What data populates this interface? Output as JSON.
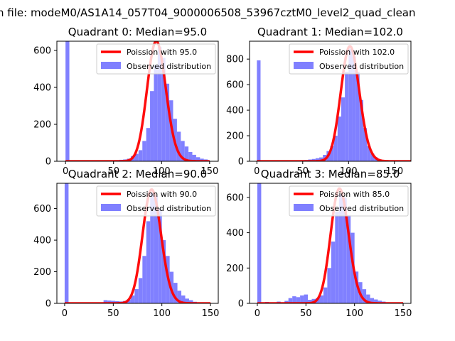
{
  "figure": {
    "suptitle": "n file: modeM0/AS1A14_057T04_9000006508_53967cztM0_level2_quad_clean"
  },
  "colors": {
    "hist_fill": "#8080ff",
    "poisson_line": "#ff0000",
    "axis": "#000000"
  },
  "chart_data": [
    {
      "type": "bar",
      "title": "Quadrant 0: Median=95.0",
      "median": 95.0,
      "xlim": [
        -9,
        159
      ],
      "ylim": [
        0,
        650
      ],
      "xticks": [
        0,
        50,
        100,
        150
      ],
      "yticks": [
        0,
        200,
        400,
        600
      ],
      "bin_width": 4,
      "bins": [
        [
          0,
          650
        ],
        [
          40,
          2
        ],
        [
          48,
          4
        ],
        [
          52,
          6
        ],
        [
          56,
          8
        ],
        [
          60,
          10
        ],
        [
          64,
          14
        ],
        [
          68,
          28
        ],
        [
          72,
          40
        ],
        [
          76,
          60
        ],
        [
          80,
          110
        ],
        [
          84,
          180
        ],
        [
          88,
          380
        ],
        [
          92,
          520
        ],
        [
          96,
          620
        ],
        [
          100,
          560
        ],
        [
          104,
          420
        ],
        [
          108,
          330
        ],
        [
          112,
          230
        ],
        [
          116,
          160
        ],
        [
          120,
          110
        ],
        [
          124,
          80
        ],
        [
          128,
          50
        ],
        [
          132,
          35
        ],
        [
          136,
          22
        ],
        [
          140,
          14
        ],
        [
          144,
          10
        ]
      ],
      "legend": {
        "position": "top-right",
        "line_label": "Poission with 95.0",
        "bar_label": "Observed distribution"
      },
      "poisson": {
        "lambda": 95.0,
        "peak": 650,
        "x_range": [
          0,
          150
        ]
      }
    },
    {
      "type": "bar",
      "title": "Quadrant 1: Median=102.0",
      "median": 102.0,
      "xlim": [
        -8,
        168
      ],
      "ylim": [
        0,
        940
      ],
      "xticks": [
        0,
        50,
        100,
        150
      ],
      "yticks": [
        0,
        200,
        400,
        600,
        800
      ],
      "bin_width": 4,
      "bins": [
        [
          0,
          790
        ],
        [
          48,
          8
        ],
        [
          52,
          10
        ],
        [
          56,
          14
        ],
        [
          60,
          18
        ],
        [
          64,
          24
        ],
        [
          68,
          30
        ],
        [
          72,
          50
        ],
        [
          76,
          80
        ],
        [
          80,
          120
        ],
        [
          84,
          200
        ],
        [
          88,
          350
        ],
        [
          92,
          500
        ],
        [
          96,
          700
        ],
        [
          100,
          880
        ],
        [
          104,
          820
        ],
        [
          108,
          700
        ],
        [
          112,
          480
        ],
        [
          116,
          260
        ],
        [
          120,
          120
        ],
        [
          124,
          60
        ],
        [
          128,
          30
        ],
        [
          132,
          12
        ]
      ],
      "legend": {
        "position": "top-right",
        "line_label": "Poission with 102.0",
        "bar_label": "Observed distribution"
      },
      "poisson": {
        "lambda": 102.0,
        "peak": 900,
        "x_range": [
          0,
          170
        ]
      }
    },
    {
      "type": "bar",
      "title": "Quadrant 2: Median=90.0",
      "median": 90.0,
      "xlim": [
        -8,
        158
      ],
      "ylim": [
        0,
        760
      ],
      "xticks": [
        0,
        50,
        100,
        150
      ],
      "yticks": [
        0,
        200,
        400,
        600
      ],
      "bin_width": 4,
      "bins": [
        [
          0,
          760
        ],
        [
          40,
          20
        ],
        [
          44,
          18
        ],
        [
          48,
          16
        ],
        [
          52,
          14
        ],
        [
          56,
          12
        ],
        [
          60,
          15
        ],
        [
          64,
          24
        ],
        [
          68,
          50
        ],
        [
          72,
          90
        ],
        [
          76,
          160
        ],
        [
          80,
          300
        ],
        [
          84,
          520
        ],
        [
          88,
          700
        ],
        [
          92,
          680
        ],
        [
          96,
          600
        ],
        [
          100,
          400
        ],
        [
          104,
          300
        ],
        [
          108,
          200
        ],
        [
          112,
          130
        ],
        [
          116,
          80
        ],
        [
          120,
          50
        ],
        [
          124,
          30
        ],
        [
          128,
          20
        ],
        [
          132,
          10
        ]
      ],
      "legend": {
        "position": "top-right",
        "line_label": "Poission with 90.0",
        "bar_label": "Observed distribution"
      },
      "poisson": {
        "lambda": 90.0,
        "peak": 720,
        "x_range": [
          0,
          150
        ]
      }
    },
    {
      "type": "bar",
      "title": "Quadrant 3: Median=85.0",
      "median": 85.0,
      "xlim": [
        -8,
        158
      ],
      "ylim": [
        0,
        680
      ],
      "xticks": [
        0,
        50,
        100,
        150
      ],
      "yticks": [
        0,
        200,
        400,
        600
      ],
      "bin_width": 4,
      "bins": [
        [
          0,
          680
        ],
        [
          8,
          8
        ],
        [
          20,
          10
        ],
        [
          28,
          14
        ],
        [
          32,
          30
        ],
        [
          36,
          40
        ],
        [
          40,
          35
        ],
        [
          44,
          45
        ],
        [
          48,
          50
        ],
        [
          52,
          20
        ],
        [
          56,
          25
        ],
        [
          60,
          30
        ],
        [
          64,
          45
        ],
        [
          68,
          90
        ],
        [
          72,
          200
        ],
        [
          76,
          350
        ],
        [
          80,
          520
        ],
        [
          84,
          620
        ],
        [
          88,
          600
        ],
        [
          92,
          500
        ],
        [
          96,
          400
        ],
        [
          100,
          180
        ],
        [
          104,
          120
        ],
        [
          108,
          80
        ],
        [
          112,
          50
        ],
        [
          116,
          30
        ],
        [
          120,
          22
        ],
        [
          124,
          15
        ],
        [
          128,
          10
        ],
        [
          132,
          6
        ]
      ],
      "legend": {
        "position": "top-right",
        "line_label": "Poission with 85.0",
        "bar_label": "Observed distribution"
      },
      "poisson": {
        "lambda": 85.0,
        "peak": 650,
        "x_range": [
          0,
          150
        ]
      }
    }
  ]
}
